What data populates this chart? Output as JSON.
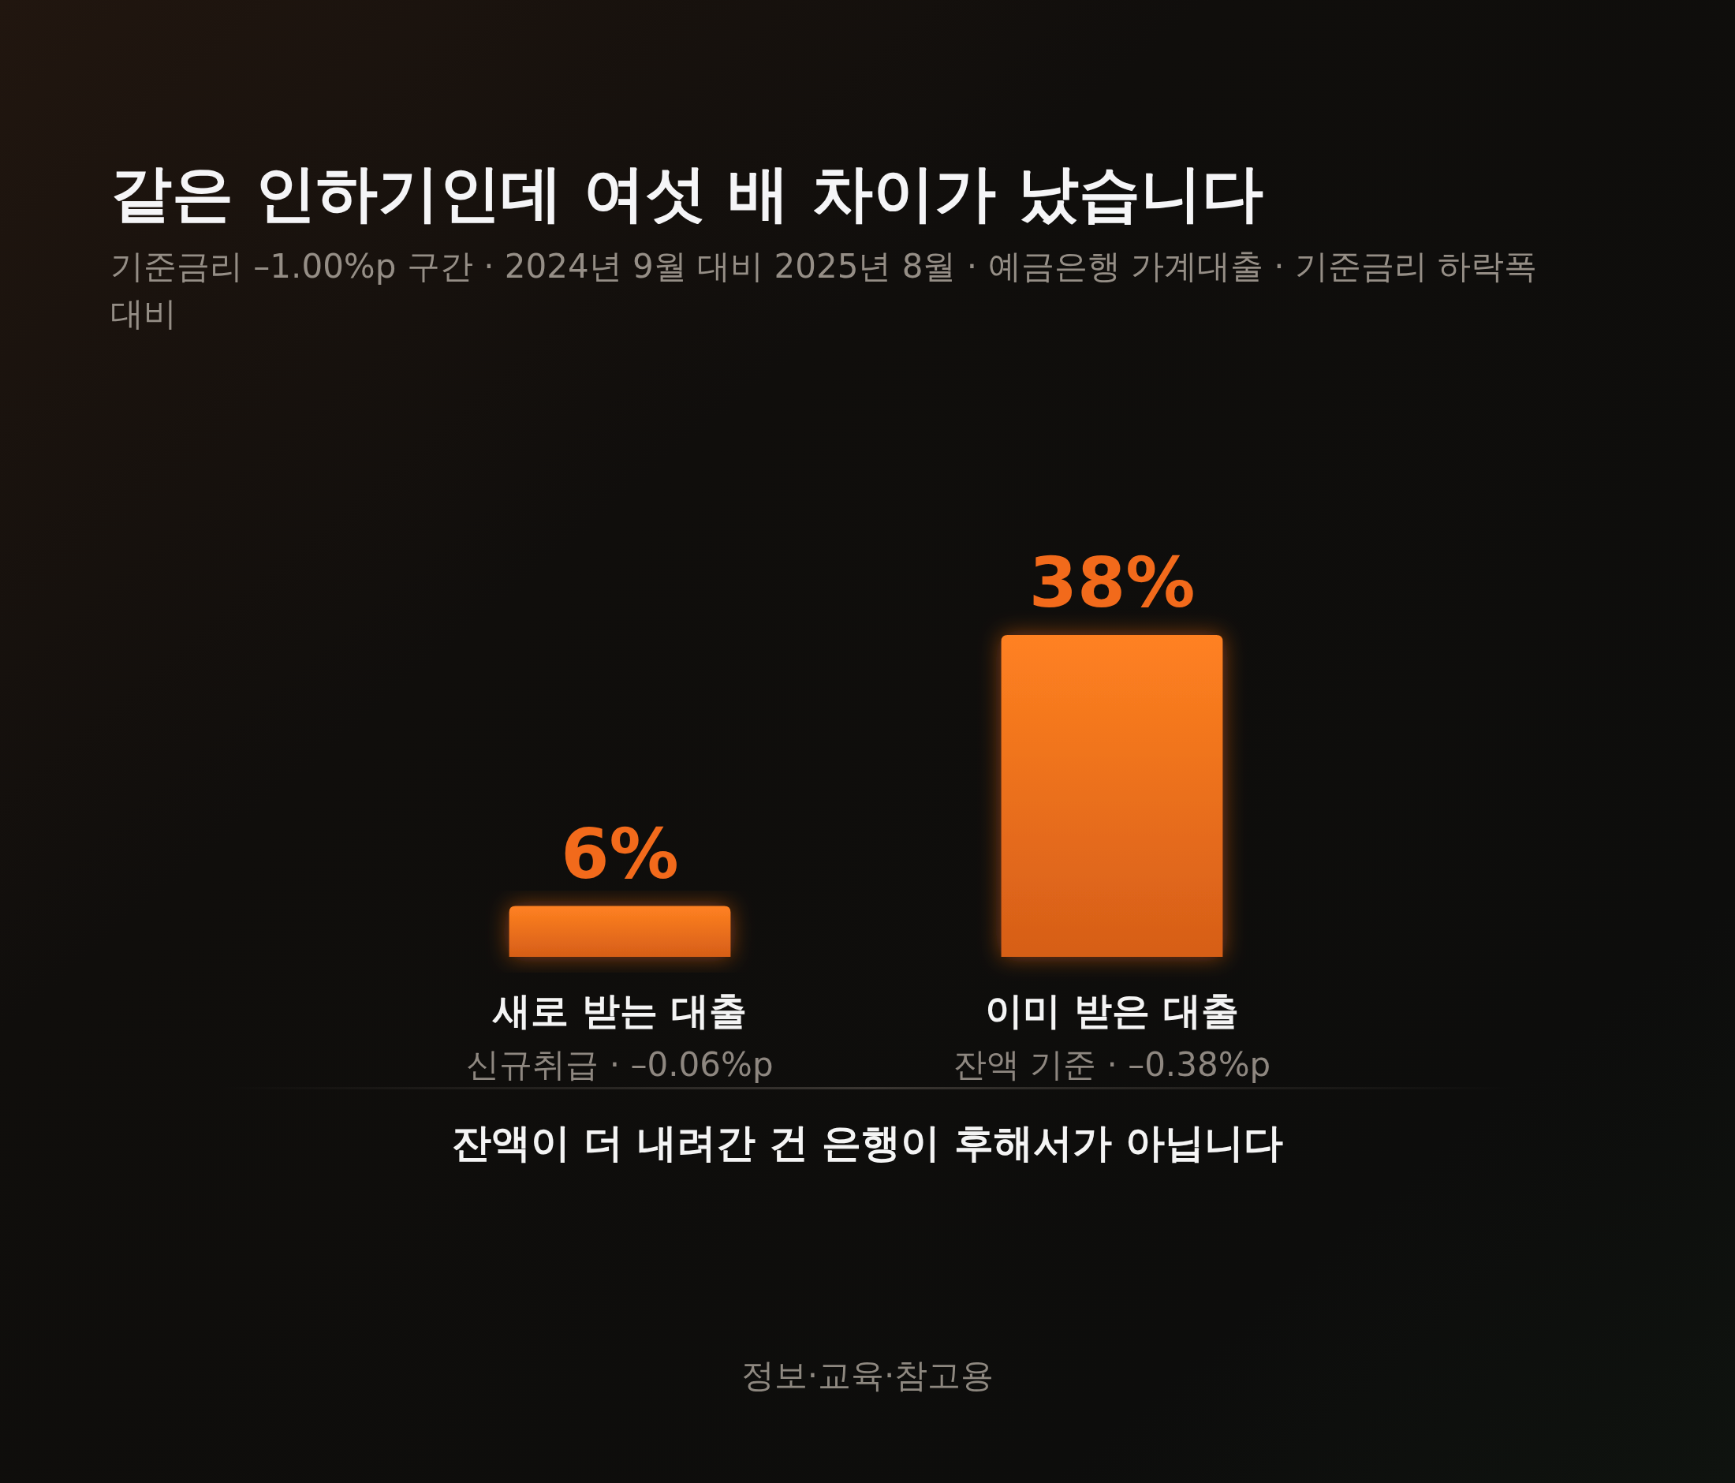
{
  "chart_data": {
    "type": "bar",
    "title": "같은 인하기인데 여섯 배 차이가 났습니다",
    "subtitle": "기준금리 –1.00%p 구간 · 2024년 9월 대비 2025년 8월 · 예금은행 가계대출 · 기준금리 하락폭 대비",
    "categories": [
      "새로 받는 대출\n신규취급 · –0.06%p",
      "이미 받은 대출\n잔액 기준 · –0.38%p"
    ],
    "values": [
      6,
      38
    ],
    "value_labels": [
      "6%",
      "38%"
    ],
    "color": "#f26a1b",
    "annotations": [
      "잔액이 더 내려간 건 은행이 후해서가 아닙니다",
      "정보·교육·참고용"
    ]
  }
}
